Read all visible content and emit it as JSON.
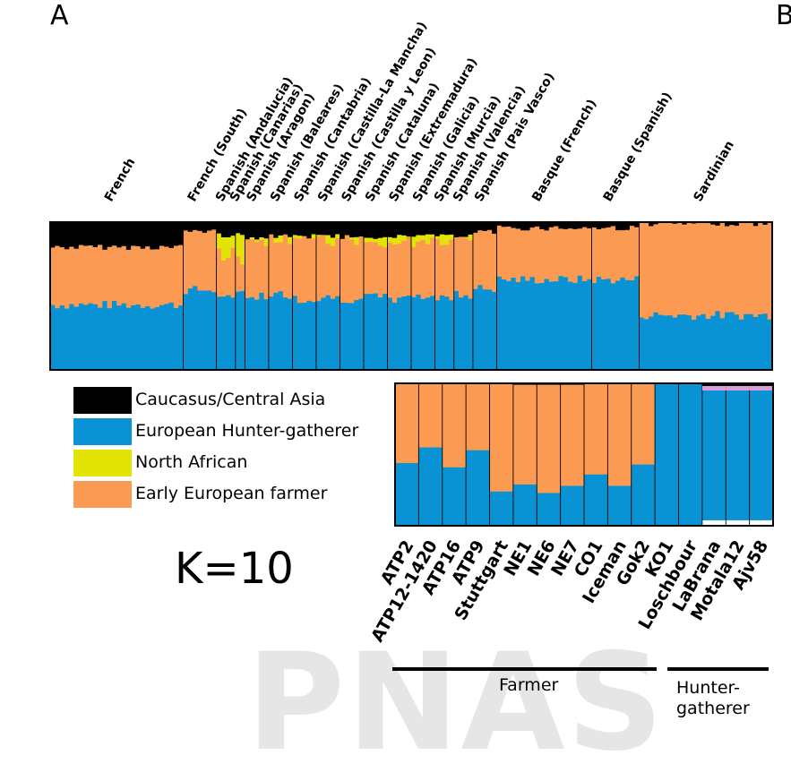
{
  "panel_letters": {
    "a": "A",
    "b": "B"
  },
  "watermark": "PNAS",
  "k_label": "K=10",
  "legend": [
    {
      "label": "Caucasus/Central Asia",
      "color": "#000000"
    },
    {
      "label": "European Hunter-gatherer",
      "color": "#0a93d4"
    },
    {
      "label": "North African",
      "color": "#e3e305"
    },
    {
      "label": "Early European farmer",
      "color": "#fb9a52"
    }
  ],
  "groups": {
    "farmer": "Farmer",
    "hunter_gatherer": "Hunter-\ngatherer"
  },
  "chart_data": [
    {
      "type": "bar",
      "stacked": true,
      "ylim": [
        0,
        1
      ],
      "grid": false,
      "components": [
        "Caucasus/Central Asia",
        "North African",
        "Early European farmer",
        "European Hunter-gatherer"
      ],
      "colors": [
        "#000000",
        "#e3e305",
        "#fb9a52",
        "#0a93d4"
      ],
      "categories": [
        {
          "label": "French",
          "n": 28,
          "black": 0.17,
          "yellow": 0.0,
          "orange": 0.39,
          "blue": 0.44
        },
        {
          "label": "French (South)",
          "n": 7,
          "black": 0.06,
          "yellow": 0.0,
          "orange": 0.4,
          "blue": 0.54
        },
        {
          "label": "Spanish (Andalucia)",
          "n": 4,
          "black": 0.09,
          "yellow": 0.12,
          "orange": 0.31,
          "blue": 0.48
        },
        {
          "label": "Spanish (Canarias)",
          "n": 2,
          "black": 0.08,
          "yellow": 0.18,
          "orange": 0.2,
          "blue": 0.54
        },
        {
          "label": "Spanish (Aragon)",
          "n": 5,
          "black": 0.1,
          "yellow": 0.02,
          "orange": 0.38,
          "blue": 0.5
        },
        {
          "label": "Spanish (Baleares)",
          "n": 5,
          "black": 0.1,
          "yellow": 0.02,
          "orange": 0.37,
          "blue": 0.51
        },
        {
          "label": "Spanish (Cantabria)",
          "n": 5,
          "black": 0.1,
          "yellow": 0.02,
          "orange": 0.4,
          "blue": 0.48
        },
        {
          "label": "Spanish (Castilla-La Mancha)",
          "n": 5,
          "black": 0.09,
          "yellow": 0.04,
          "orange": 0.38,
          "blue": 0.49
        },
        {
          "label": "Spanish (Castilla y Leon)",
          "n": 5,
          "black": 0.1,
          "yellow": 0.02,
          "orange": 0.4,
          "blue": 0.48
        },
        {
          "label": "Spanish (Cataluna)",
          "n": 5,
          "black": 0.1,
          "yellow": 0.03,
          "orange": 0.38,
          "blue": 0.49
        },
        {
          "label": "Spanish (Extremadura)",
          "n": 5,
          "black": 0.09,
          "yellow": 0.04,
          "orange": 0.39,
          "blue": 0.48
        },
        {
          "label": "Spanish (Galicia)",
          "n": 5,
          "black": 0.1,
          "yellow": 0.03,
          "orange": 0.37,
          "blue": 0.5
        },
        {
          "label": "Spanish (Murcia)",
          "n": 4,
          "black": 0.09,
          "yellow": 0.04,
          "orange": 0.38,
          "blue": 0.49
        },
        {
          "label": "Spanish (Valencia)",
          "n": 4,
          "black": 0.1,
          "yellow": 0.02,
          "orange": 0.37,
          "blue": 0.51
        },
        {
          "label": "Spanish (Pais Vasco)",
          "n": 5,
          "black": 0.07,
          "yellow": 0.0,
          "orange": 0.38,
          "blue": 0.55
        },
        {
          "label": "Basque (French)",
          "n": 20,
          "black": 0.04,
          "yellow": 0.0,
          "orange": 0.35,
          "blue": 0.61
        },
        {
          "label": "Basque (Spanish)",
          "n": 10,
          "black": 0.04,
          "yellow": 0.0,
          "orange": 0.35,
          "blue": 0.61
        },
        {
          "label": "Sardinian",
          "n": 28,
          "black": 0.01,
          "yellow": 0.0,
          "orange": 0.62,
          "blue": 0.37
        }
      ]
    },
    {
      "type": "bar",
      "stacked": true,
      "ylim": [
        0,
        1
      ],
      "grid": false,
      "components": [
        "Caucasus/Central Asia",
        "Early European farmer",
        "European Hunter-gatherer"
      ],
      "colors": [
        "#000000",
        "#fb9a52",
        "#0a93d4"
      ],
      "categories": [
        "ATP2",
        "ATP12-1420",
        "ATP16",
        "ATP9",
        "Stuttgart",
        "NE1",
        "NE6",
        "NE7",
        "CO1",
        "Iceman",
        "Gok2",
        "KO1",
        "Loschbour",
        "LaBrana",
        "Motala12",
        "Ajv58"
      ],
      "series": [
        {
          "name": "Caucasus/Central Asia",
          "values": [
            0.0,
            0.0,
            0.0,
            0.0,
            0.0,
            0.01,
            0.01,
            0.01,
            0.0,
            0.0,
            0.0,
            0.0,
            0.0,
            0.02,
            0.02,
            0.02
          ]
        },
        {
          "name": "Early European farmer",
          "values": [
            0.56,
            0.45,
            0.59,
            0.47,
            0.76,
            0.7,
            0.76,
            0.71,
            0.64,
            0.72,
            0.57,
            0.0,
            0.0,
            0.0,
            0.0,
            0.0
          ]
        },
        {
          "name": "European Hunter-gatherer",
          "values": [
            0.44,
            0.55,
            0.41,
            0.53,
            0.24,
            0.29,
            0.23,
            0.28,
            0.36,
            0.28,
            0.43,
            1.0,
            1.0,
            0.94,
            0.94,
            0.94
          ]
        }
      ],
      "groups": [
        {
          "label": "Farmer",
          "from": "ATP2",
          "to": "KO1"
        },
        {
          "label": "Hunter-gatherer",
          "from": "Loschbour",
          "to": "Ajv58"
        }
      ]
    }
  ]
}
